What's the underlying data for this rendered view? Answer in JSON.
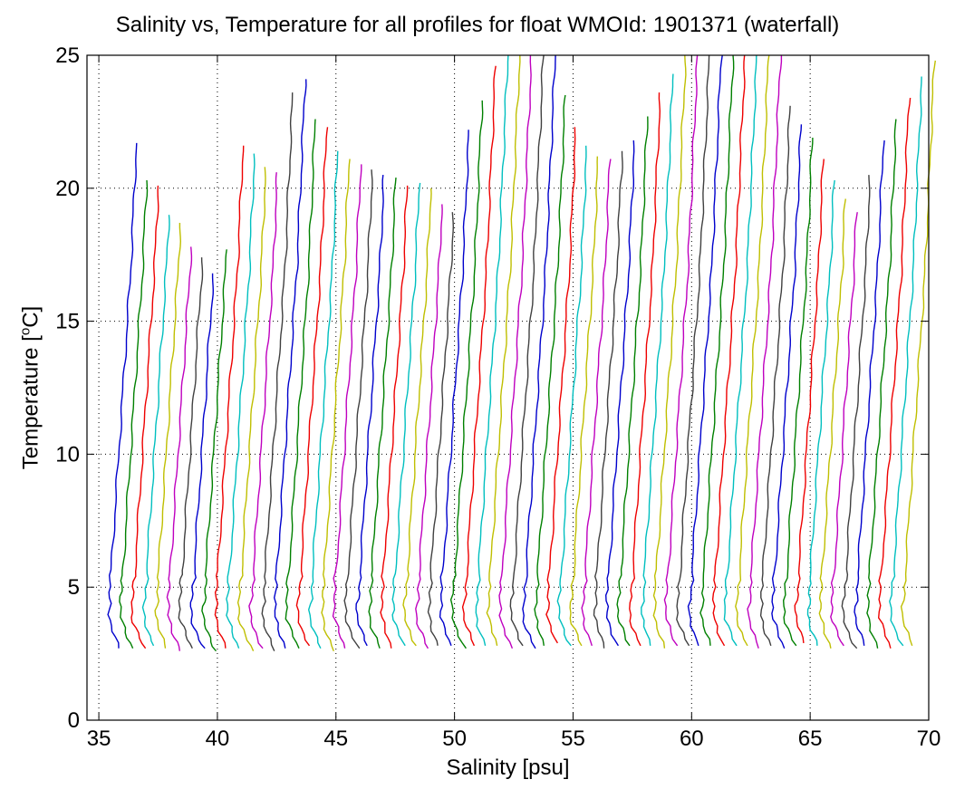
{
  "chart_data": {
    "type": "line",
    "title": "Salinity vs, Temperature for all profiles for float WMOId: 1901371 (waterfall)",
    "xlabel": "Salinity [psu]",
    "ylabel_main": "Temperature [",
    "ylabel_sup": "o",
    "ylabel_tail": "C]",
    "xlim": [
      34.5,
      70
    ],
    "ylim": [
      0,
      25
    ],
    "xticks": [
      35,
      40,
      45,
      50,
      55,
      60,
      65,
      70
    ],
    "yticks": [
      0,
      5,
      10,
      15,
      20,
      25
    ],
    "grid": true,
    "waterfall_spacing": 0.5,
    "color_cycle": [
      "#0000cc",
      "#008000",
      "#ee0000",
      "#00bfbf",
      "#bfbf00",
      "#bf00bf",
      "#404040"
    ],
    "profile_start_x": [
      35.3,
      35.8,
      36.3,
      36.8,
      37.3,
      37.8,
      38.3,
      38.8,
      39.3,
      39.8,
      40.3,
      40.8,
      41.3,
      41.8,
      42.3,
      42.8,
      43.3,
      43.8,
      44.3,
      44.8,
      45.3,
      45.8,
      46.3,
      46.8,
      47.3,
      47.8,
      48.3,
      48.8,
      49.3,
      49.8,
      50.3,
      50.8,
      51.3,
      51.8,
      52.3,
      52.8,
      53.3,
      53.8,
      54.3,
      54.8,
      55.3,
      55.8,
      56.3,
      56.8,
      57.3,
      57.8,
      58.3,
      58.8,
      59.3,
      59.8,
      60.3,
      60.8,
      61.3,
      61.8,
      62.3,
      62.8,
      63.3,
      63.8,
      64.3,
      64.8,
      65.3,
      65.8,
      66.3,
      66.8,
      67.3,
      67.8,
      68.3,
      68.8
    ],
    "profile_top_temperature": [
      21.7,
      20.3,
      20.1,
      19.0,
      18.7,
      17.8,
      17.4,
      16.8,
      17.7,
      21.6,
      21.3,
      20.8,
      20.6,
      23.6,
      24.1,
      22.6,
      22.3,
      21.4,
      21.1,
      20.9,
      20.7,
      20.5,
      20.4,
      20.1,
      20.2,
      20.0,
      19.4,
      19.1,
      22.2,
      23.3,
      24.6,
      25.0,
      25.0,
      25.0,
      25.0,
      25.0,
      23.5,
      22.3,
      21.6,
      21.2,
      21.1,
      21.4,
      21.8,
      22.7,
      23.6,
      24.3,
      25.0,
      25.0,
      25.0,
      25.0,
      25.0,
      25.0,
      25.0,
      25.0,
      25.0,
      23.1,
      22.4,
      21.9,
      21.1,
      20.3,
      19.6,
      19.1,
      20.5,
      21.8,
      22.6,
      23.4,
      24.2,
      24.8
    ],
    "profile_bottom_temperature": [
      2.7,
      2.7,
      2.7,
      2.8,
      2.7,
      2.6,
      2.7,
      2.7,
      2.6,
      2.7,
      2.7,
      2.6,
      2.7,
      2.6,
      2.7,
      2.7,
      2.8,
      2.7,
      2.6,
      2.7,
      2.7,
      2.8,
      2.7,
      2.7,
      2.8,
      2.8,
      2.7,
      2.8,
      2.8,
      2.7,
      2.8,
      2.8,
      2.8,
      2.7,
      2.8,
      2.7,
      2.8,
      2.9,
      2.8,
      2.8,
      2.8,
      2.7,
      2.8,
      2.8,
      2.8,
      2.8,
      2.7,
      2.8,
      2.8,
      2.8,
      2.8,
      2.8,
      2.8,
      2.8,
      2.7,
      2.8,
      2.7,
      2.8,
      2.9,
      2.8,
      2.7,
      2.8,
      2.7,
      2.8,
      2.7,
      2.7,
      2.8,
      2.8
    ]
  }
}
